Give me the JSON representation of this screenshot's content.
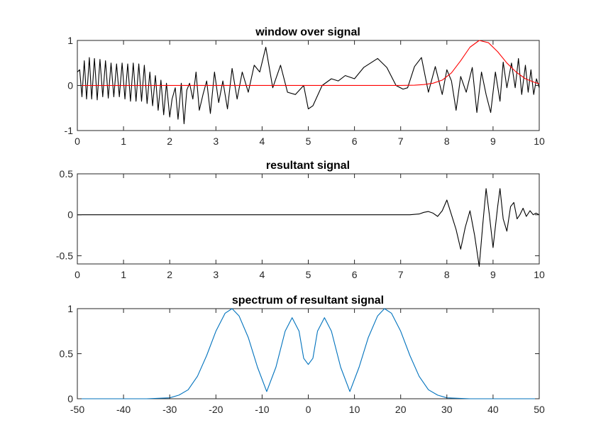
{
  "chart_data": [
    {
      "type": "line",
      "title": "window over signal",
      "xlabel": "",
      "ylabel": "",
      "xlim": [
        0,
        10
      ],
      "ylim": [
        -1,
        1
      ],
      "xticks": [
        "0",
        "1",
        "2",
        "3",
        "4",
        "5",
        "6",
        "7",
        "8",
        "9",
        "10"
      ],
      "yticks": [
        "-1",
        "0",
        "1"
      ],
      "grid": false,
      "series": [
        {
          "color": "#000000",
          "x": [
            0,
            0.05,
            0.1,
            0.15,
            0.2,
            0.26,
            0.31,
            0.37,
            0.43,
            0.49,
            0.55,
            0.61,
            0.67,
            0.73,
            0.79,
            0.85,
            0.91,
            0.97,
            1.03,
            1.09,
            1.15,
            1.21,
            1.27,
            1.33,
            1.39,
            1.45,
            1.51,
            1.57,
            1.63,
            1.69,
            1.75,
            1.81,
            1.87,
            1.93,
            2.0,
            2.05,
            2.12,
            2.18,
            2.25,
            2.31,
            2.37,
            2.43,
            2.5,
            2.57,
            2.64,
            2.72,
            2.8,
            2.88,
            2.97,
            3.06,
            3.15,
            3.25,
            3.35,
            3.46,
            3.57,
            3.7,
            3.83,
            3.95,
            4.08,
            4.23,
            4.4,
            4.55,
            4.72,
            4.9,
            5.0,
            5.1,
            5.3,
            5.5,
            5.65,
            5.8,
            6.0,
            6.2,
            6.5,
            6.7,
            6.9,
            7.05,
            7.15,
            7.3,
            7.45,
            7.6,
            7.75,
            7.9,
            8.0,
            8.1,
            8.2,
            8.3,
            8.42,
            8.55,
            8.65,
            8.75,
            8.85,
            8.95,
            9.05,
            9.15,
            9.22,
            9.3,
            9.4,
            9.48,
            9.55,
            9.62,
            9.7,
            9.76,
            9.82,
            9.88,
            9.94,
            10.0
          ],
          "y": [
            0.3,
            0.35,
            -0.25,
            0.55,
            -0.3,
            0.62,
            -0.3,
            0.6,
            -0.32,
            0.58,
            -0.25,
            0.55,
            -0.28,
            0.5,
            -0.25,
            0.48,
            -0.25,
            0.5,
            -0.3,
            0.48,
            -0.35,
            0.5,
            -0.35,
            0.48,
            -0.35,
            0.45,
            -0.4,
            0.3,
            -0.45,
            0.22,
            -0.55,
            0.12,
            -0.65,
            0.05,
            -0.7,
            -0.3,
            -0.05,
            -0.75,
            0.05,
            -0.85,
            -0.1,
            0.05,
            -0.3,
            0.3,
            -0.55,
            -0.2,
            0.1,
            -0.62,
            0.3,
            -0.38,
            0.1,
            -0.52,
            0.38,
            -0.3,
            0.3,
            -0.15,
            0.45,
            0.3,
            0.85,
            -0.05,
            0.45,
            -0.15,
            -0.2,
            0.0,
            -0.52,
            -0.45,
            0.0,
            0.15,
            0.1,
            0.22,
            0.15,
            0.4,
            0.6,
            0.4,
            0.0,
            -0.08,
            -0.05,
            0.42,
            0.62,
            -0.15,
            0.42,
            -0.2,
            0.35,
            0.1,
            -0.55,
            0.2,
            -0.15,
            0.4,
            -0.6,
            0.3,
            -0.2,
            -0.6,
            0.3,
            -0.35,
            0.52,
            -0.05,
            0.5,
            -0.05,
            0.6,
            -0.2,
            0.45,
            -0.15,
            0.35,
            -0.2,
            0.15,
            -0.05
          ]
        },
        {
          "color": "#ff0000",
          "x": [
            0,
            7.0,
            7.3,
            7.5,
            7.7,
            7.9,
            8.1,
            8.3,
            8.5,
            8.7,
            8.9,
            9.1,
            9.3,
            9.5,
            9.7,
            9.9,
            10.0
          ],
          "y": [
            0,
            0.002,
            0.007,
            0.02,
            0.05,
            0.12,
            0.28,
            0.55,
            0.85,
            1.0,
            0.95,
            0.75,
            0.5,
            0.3,
            0.15,
            0.07,
            0.04
          ]
        }
      ]
    },
    {
      "type": "line",
      "title": "resultant signal",
      "xlabel": "",
      "ylabel": "",
      "xlim": [
        0,
        10
      ],
      "ylim": [
        -0.6,
        0.5
      ],
      "xticks": [
        "0",
        "1",
        "2",
        "3",
        "4",
        "5",
        "6",
        "7",
        "8",
        "9",
        "10"
      ],
      "yticks": [
        "-0.5",
        "0",
        "0.5"
      ],
      "grid": false,
      "series": [
        {
          "color": "#000000",
          "x": [
            0,
            7.0,
            7.2,
            7.4,
            7.5,
            7.6,
            7.7,
            7.8,
            7.9,
            8.0,
            8.1,
            8.2,
            8.3,
            8.4,
            8.5,
            8.6,
            8.7,
            8.78,
            8.85,
            8.92,
            9.0,
            9.1,
            9.15,
            9.22,
            9.3,
            9.38,
            9.45,
            9.52,
            9.58,
            9.65,
            9.72,
            9.8,
            9.87,
            9.93,
            10.0
          ],
          "y": [
            0,
            0,
            0.0,
            0.01,
            0.03,
            0.04,
            0.02,
            -0.02,
            0.05,
            0.18,
            0.0,
            -0.18,
            -0.42,
            -0.15,
            0.05,
            -0.25,
            -0.63,
            -0.1,
            0.32,
            0.0,
            -0.4,
            0.1,
            0.32,
            -0.05,
            -0.2,
            0.1,
            0.15,
            -0.05,
            0.0,
            0.08,
            -0.02,
            0.05,
            0.0,
            0.02,
            0.0
          ]
        }
      ]
    },
    {
      "type": "line",
      "title": "spectrum of resultant signal",
      "xlabel": "",
      "ylabel": "",
      "xlim": [
        -50,
        50
      ],
      "ylim": [
        0,
        1
      ],
      "xticks": [
        "-50",
        "-40",
        "-30",
        "-20",
        "-10",
        "0",
        "10",
        "20",
        "30",
        "40",
        "50"
      ],
      "yticks": [
        "0",
        "0.5",
        "1"
      ],
      "grid": false,
      "series": [
        {
          "color": "#0072bd",
          "x": [
            -50,
            -35,
            -30,
            -28,
            -26,
            -24,
            -22,
            -20,
            -18,
            -16.5,
            -15,
            -13,
            -11,
            -9,
            -7,
            -5,
            -3.5,
            -2,
            -1,
            0,
            1,
            2,
            3.5,
            5,
            7,
            9,
            11,
            13,
            15,
            16.5,
            18,
            20,
            22,
            24,
            26,
            28,
            30,
            35,
            50
          ],
          "y": [
            0,
            0,
            0.01,
            0.04,
            0.1,
            0.25,
            0.48,
            0.75,
            0.95,
            1.0,
            0.92,
            0.68,
            0.35,
            0.08,
            0.35,
            0.75,
            0.9,
            0.75,
            0.45,
            0.38,
            0.45,
            0.75,
            0.9,
            0.75,
            0.35,
            0.08,
            0.35,
            0.68,
            0.92,
            1.0,
            0.95,
            0.75,
            0.48,
            0.25,
            0.1,
            0.04,
            0.01,
            0,
            0
          ]
        }
      ]
    }
  ]
}
